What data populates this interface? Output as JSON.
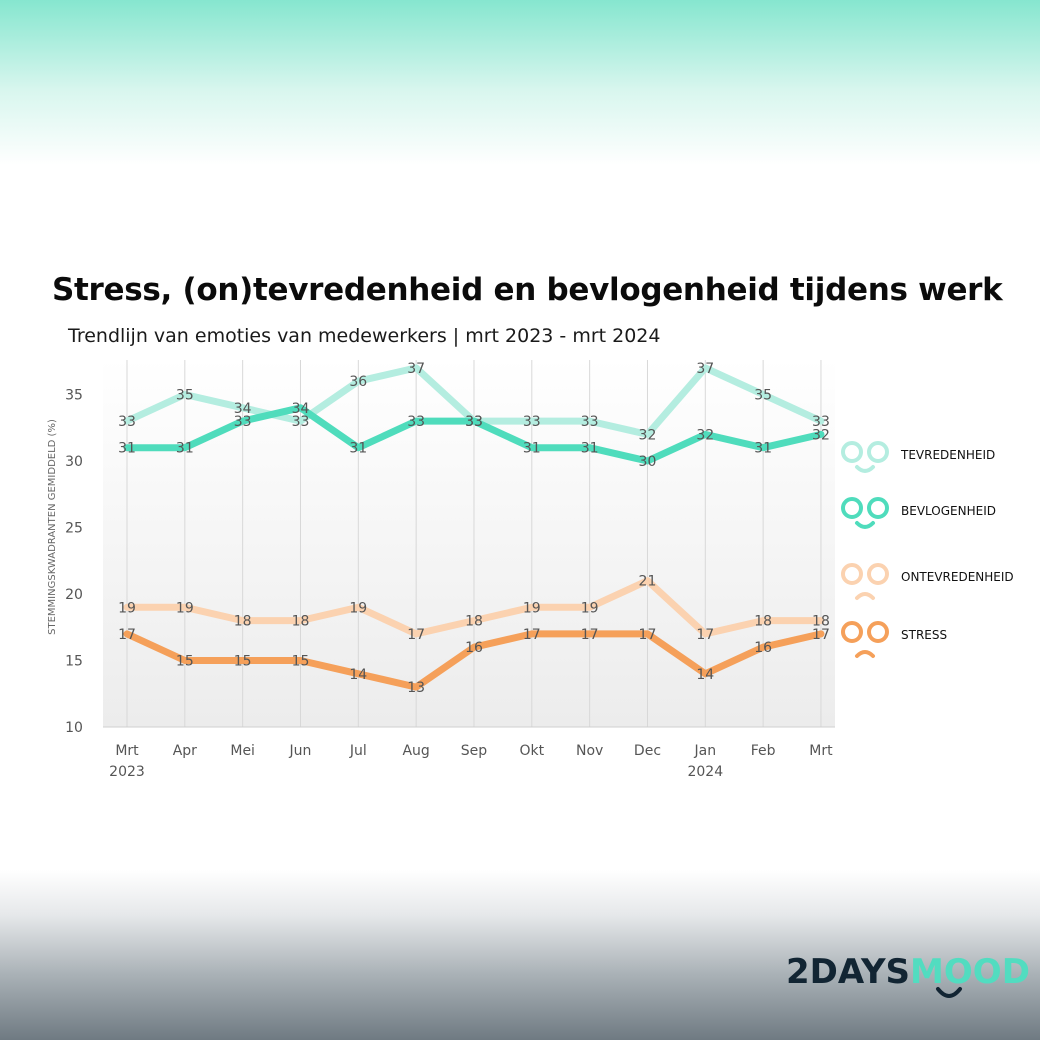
{
  "title": "Stress, (on)tevredenheid en bevlogenheid tijdens werk",
  "subtitle": "Trendlijn van emoties van medewerkers | mrt 2023 - mrt 2024",
  "chart_data": {
    "type": "line",
    "title": "",
    "xlabel": "",
    "ylabel": "STEMMINGSKWADRANTEN GEMIDDELD (%)",
    "ylim": [
      10,
      36.5
    ],
    "yticks": [
      10,
      15,
      20,
      25,
      30,
      35
    ],
    "categories": [
      "Mrt",
      "Apr",
      "Mei",
      "Jun",
      "Jul",
      "Aug",
      "Sep",
      "Okt",
      "Nov",
      "Dec",
      "Jan",
      "Feb",
      "Mrt"
    ],
    "year_labels": [
      {
        "index": 0,
        "label": "2023"
      },
      {
        "index": 10,
        "label": "2024"
      }
    ],
    "grid": true,
    "series": [
      {
        "name": "TEVREDENHEID",
        "color": "#b4ede0",
        "values": [
          33,
          35,
          34,
          33,
          36,
          37,
          33,
          33,
          33,
          32,
          37,
          35,
          33
        ]
      },
      {
        "name": "BEVLOGENHEID",
        "color": "#4fdcbc",
        "values": [
          31,
          31,
          33,
          34,
          31,
          33,
          33,
          31,
          31,
          30,
          32,
          31,
          32
        ]
      },
      {
        "name": "ONTEVREDENHEID",
        "color": "#fbd2b0",
        "values": [
          19,
          19,
          18,
          18,
          19,
          17,
          18,
          19,
          19,
          21,
          17,
          18,
          18
        ]
      },
      {
        "name": "STRESS",
        "color": "#f5a05a",
        "values": [
          17,
          15,
          15,
          15,
          14,
          13,
          16,
          17,
          17,
          17,
          14,
          16,
          17
        ]
      }
    ]
  },
  "legend": [
    {
      "label": "TEVREDENHEID",
      "color": "#b4ede0",
      "mood": "smile"
    },
    {
      "label": "BEVLOGENHEID",
      "color": "#4fdcbc",
      "mood": "smile"
    },
    {
      "label": "ONTEVREDENHEID",
      "color": "#fbd2b0",
      "mood": "frown"
    },
    {
      "label": "STRESS",
      "color": "#f5a05a",
      "mood": "frown"
    }
  ],
  "logo": {
    "part1": "2DAYS",
    "part2": "MOOD"
  }
}
